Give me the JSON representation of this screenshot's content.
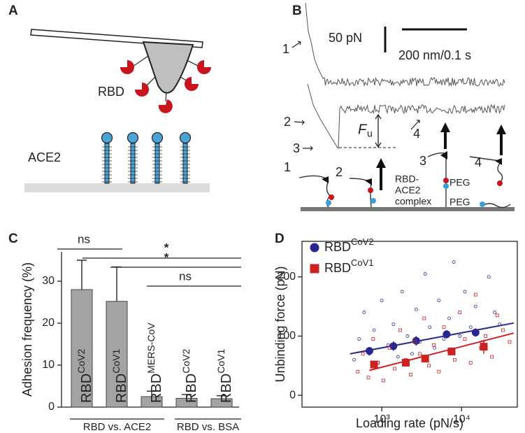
{
  "panels": {
    "a": {
      "label": "A",
      "rbd": "RBD",
      "receptor": "ACE2"
    },
    "b": {
      "label": "B",
      "force_scale": "50 pN",
      "distance_scale": "200 nm/0.1 s",
      "trace_labels": [
        "1",
        "2",
        "3",
        "4"
      ],
      "force_symbol": "F",
      "force_subscript": "u",
      "step_labels": [
        "1",
        "2",
        "3",
        "4"
      ],
      "complex": [
        "RBD-",
        "ACE2",
        "complex"
      ],
      "linkers": [
        "PEG",
        "PEG"
      ]
    },
    "c": {
      "label": "C"
    },
    "d": {
      "label": "D"
    }
  },
  "chart_data": [
    {
      "type": "bar",
      "y_label": "Adhesion frequency (%)",
      "categories": [
        {
          "base": "RBD",
          "sup": "CoV2"
        },
        {
          "base": "RBD",
          "sup": "CoV1"
        },
        {
          "base": "RBD",
          "sup": "MERS-CoV"
        },
        {
          "base": "RBD",
          "sup": "CoV2"
        },
        {
          "base": "RBD",
          "sup": "CoV1"
        }
      ],
      "values": [
        28,
        25.2,
        2.5,
        2.1,
        2.0
      ],
      "errors": [
        7,
        8.2,
        1.3,
        0.9,
        0.7
      ],
      "color": "#a3a3a3",
      "ylim": [
        0,
        37
      ],
      "yticks": [
        0,
        10,
        20,
        30
      ],
      "groups": [
        "RBD vs. ACE2",
        "RBD vs. BSA"
      ],
      "significance": [
        "ns",
        "*",
        "*",
        "ns"
      ]
    },
    {
      "type": "scatter",
      "x_label": "Loading rate (pN/s)",
      "y_label": "Unbinding force (pN)",
      "log_x": true,
      "xlim": [
        100,
        50000
      ],
      "xticks": [
        {
          "value": 1000,
          "label": "10³"
        },
        {
          "value": 10000,
          "label": "10⁴"
        }
      ],
      "ylim": [
        -20,
        260
      ],
      "yticks": [
        0,
        100,
        200
      ],
      "legend": "upper left",
      "series": [
        {
          "name": "RBD",
          "name_sup": "CoV2",
          "color": "#27278f",
          "marker": "circle",
          "x": [
            450,
            520,
            600,
            700,
            800,
            900,
            1000,
            1200,
            1400,
            1600,
            1800,
            2100,
            2400,
            2700,
            3000,
            3500,
            4000,
            4600,
            5200,
            6000,
            7000,
            8000,
            9500,
            11000,
            13000,
            15000,
            18000,
            22000,
            26000,
            30000
          ],
          "values": [
            60,
            95,
            140,
            70,
            110,
            55,
            160,
            85,
            120,
            65,
            175,
            100,
            70,
            145,
            90,
            205,
            115,
            80,
            160,
            95,
            130,
            225,
            100,
            175,
            115,
            150,
            90,
            200,
            140,
            120
          ],
          "means": {
            "x": [
              700,
              1400,
              2700,
              6500,
              15000
            ],
            "values": [
              75,
              83,
              92,
              103,
              106
            ],
            "errors": [
              6,
              8,
              8,
              7,
              7
            ]
          },
          "fit": {
            "x": [
              400,
              45000
            ],
            "values": [
              70,
              122
            ]
          }
        },
        {
          "name": "RBD",
          "name_sup": "CoV1",
          "color": "#cc2222",
          "marker": "square",
          "x": [
            500,
            580,
            680,
            780,
            900,
            1050,
            1250,
            1450,
            1700,
            2000,
            2300,
            2600,
            3000,
            3400,
            3900,
            4500,
            5200,
            6000,
            7000,
            8200,
            9500,
            11000,
            13000,
            15000,
            17500,
            20000,
            24000,
            28000,
            33000,
            40000
          ],
          "values": [
            40,
            70,
            30,
            95,
            55,
            25,
            80,
            45,
            110,
            60,
            35,
            90,
            70,
            130,
            50,
            85,
            40,
            115,
            75,
            60,
            140,
            95,
            55,
            170,
            80,
            100,
            65,
            135,
            110,
            90
          ],
          "means": {
            "x": [
              800,
              2000,
              3500,
              7500,
              19000
            ],
            "values": [
              52,
              55,
              62,
              74,
              82
            ],
            "errors": [
              5,
              6,
              6,
              6,
              12
            ]
          },
          "fit": {
            "x": [
              700,
              45000
            ],
            "values": [
              42,
              105
            ]
          }
        }
      ]
    }
  ]
}
